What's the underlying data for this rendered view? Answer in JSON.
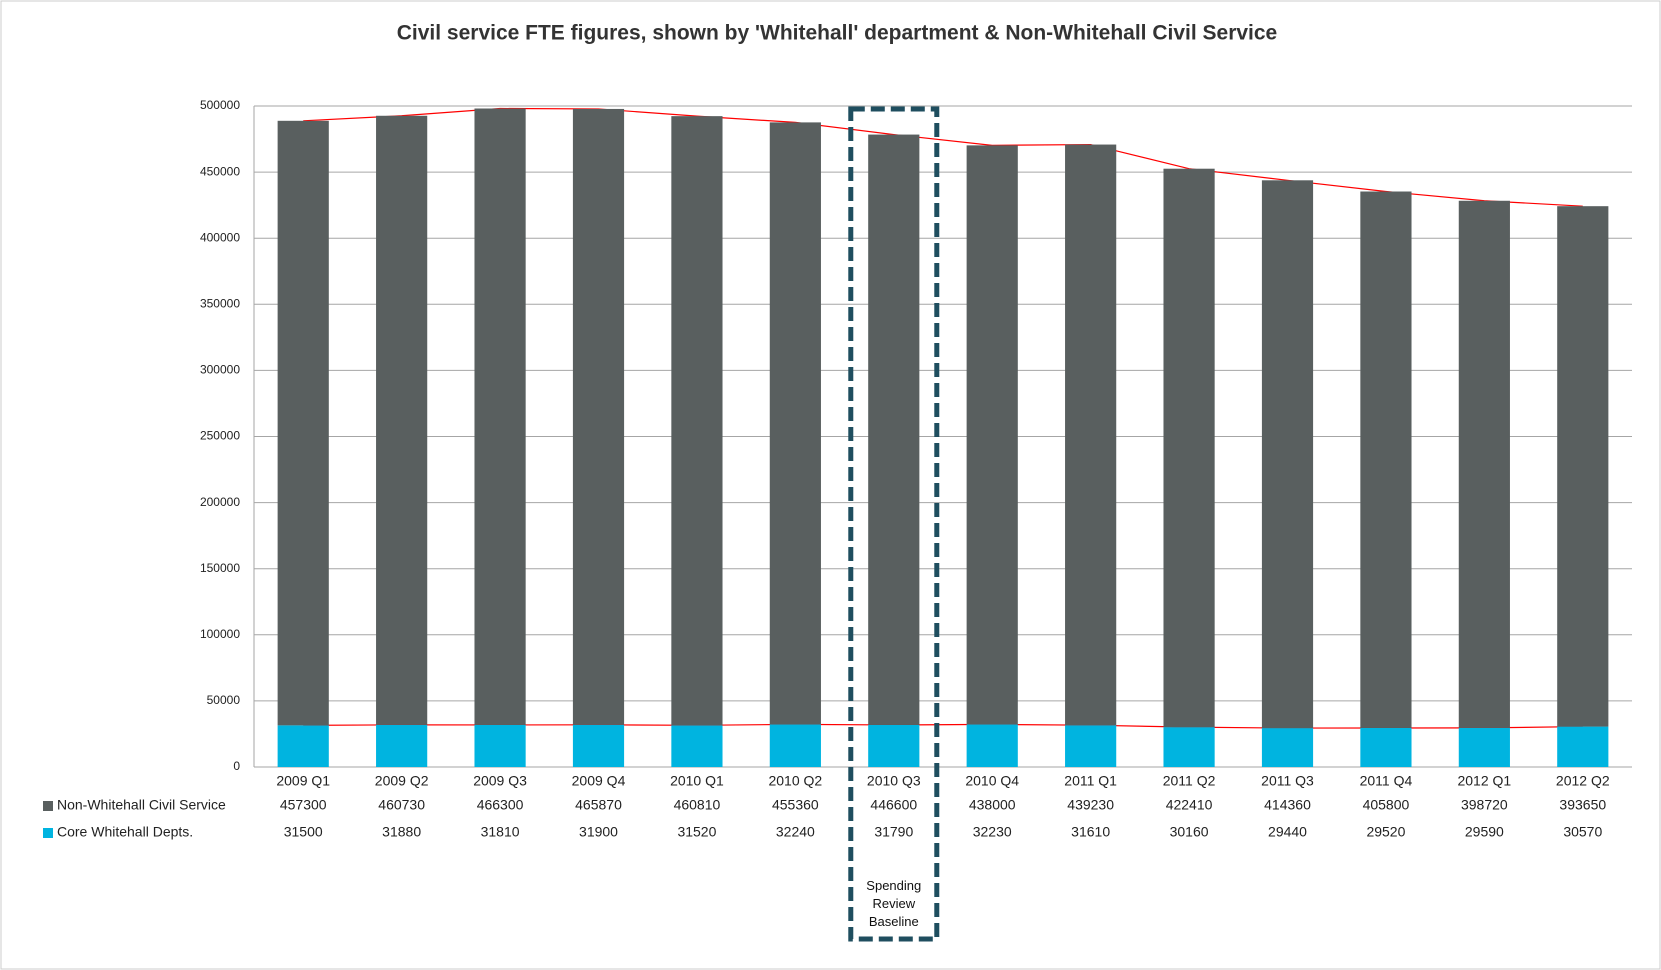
{
  "chart_data": {
    "type": "bar",
    "stacked": true,
    "title": "Civil service FTE figures, shown by 'Whitehall' department & Non-Whitehall Civil Service",
    "categories": [
      "2009 Q1",
      "2009 Q2",
      "2009 Q3",
      "2009 Q4",
      "2010 Q1",
      "2010 Q2",
      "2010 Q3",
      "2010 Q4",
      "2011 Q1",
      "2011 Q2",
      "2011 Q3",
      "2011 Q4",
      "2012 Q1",
      "2012 Q2"
    ],
    "series": [
      {
        "name": "Non-Whitehall Civil Service",
        "color": "#595f5f",
        "values": [
          457300,
          460730,
          466300,
          465870,
          460810,
          455360,
          446600,
          438000,
          439230,
          422410,
          414360,
          405800,
          398720,
          393650
        ]
      },
      {
        "name": "Core Whitehall Depts.",
        "color": "#00b4e0",
        "values": [
          31500,
          31880,
          31810,
          31900,
          31520,
          32240,
          31790,
          32230,
          31610,
          30160,
          29440,
          29520,
          29590,
          30570
        ]
      }
    ],
    "ylim": [
      0,
      500000
    ],
    "yticks": [
      0,
      50000,
      100000,
      150000,
      200000,
      250000,
      300000,
      350000,
      400000,
      450000,
      500000
    ],
    "grid": true,
    "trend_line_color": "#ff0000",
    "annotation": "Spending Review Baseline",
    "annotation_category": 6
  }
}
